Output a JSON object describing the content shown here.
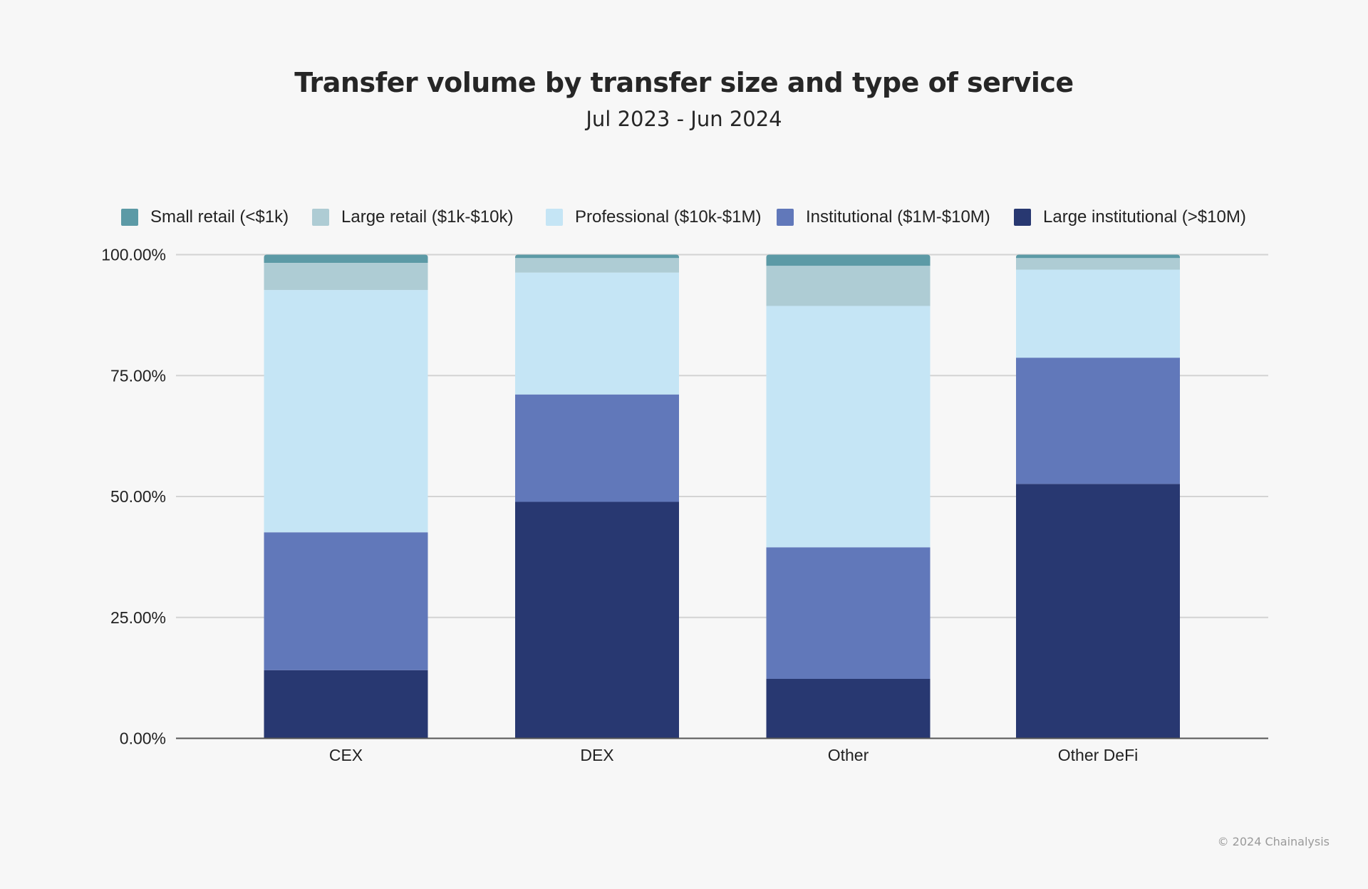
{
  "chart_data": {
    "type": "bar",
    "stacked": true,
    "title": "Transfer volume by transfer size and type of service",
    "subtitle": "Jul 2023 - Jun 2024",
    "xlabel": "",
    "ylabel": "",
    "ylim": [
      0,
      100
    ],
    "yticks": [
      0,
      25,
      50,
      75,
      100
    ],
    "ytick_labels": [
      "0.00%",
      "25.00%",
      "50.00%",
      "75.00%",
      "100.00%"
    ],
    "grid": true,
    "legend_position": "top",
    "categories": [
      "CEX",
      "DEX",
      "Other",
      "Other DeFi"
    ],
    "series": [
      {
        "name": "Large institutional (>$10M)",
        "color": "#283871",
        "values": [
          14.1,
          48.9,
          12.3,
          52.6
        ]
      },
      {
        "name": "Institutional ($1M-$10M)",
        "color": "#6178ba",
        "values": [
          28.5,
          22.2,
          27.2,
          26.1
        ]
      },
      {
        "name": "Professional ($10k-$1M)",
        "color": "#c5e5f5",
        "values": [
          50.1,
          25.2,
          49.9,
          18.2
        ]
      },
      {
        "name": "Large retail ($1k-$10k)",
        "color": "#aeccd4",
        "values": [
          5.6,
          3.0,
          8.3,
          2.4
        ]
      },
      {
        "name": "Small retail (<$1k)",
        "color": "#5c9aa6",
        "values": [
          1.7,
          0.7,
          2.3,
          0.7
        ]
      }
    ],
    "legend_order": [
      4,
      3,
      2,
      1,
      0
    ]
  },
  "footer": {
    "copyright": "© 2024 Chainalysis"
  }
}
